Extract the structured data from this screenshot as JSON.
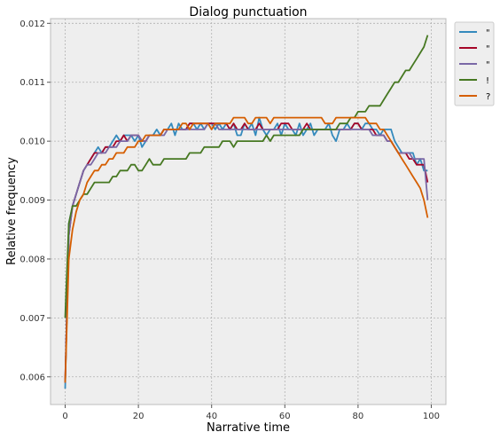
{
  "chart_data": {
    "type": "line",
    "title": "Dialog punctuation",
    "xlabel": "Narrative time",
    "ylabel": "Relative frequency",
    "xlim": [
      -4,
      104
    ],
    "ylim": [
      0.00553,
      0.01208
    ],
    "x_ticks": [
      0,
      20,
      40,
      60,
      80,
      100
    ],
    "y_ticks": [
      0.006,
      0.007,
      0.008,
      0.009,
      0.01,
      0.011,
      0.012
    ],
    "x_tick_labels": [
      "0",
      "20",
      "40",
      "60",
      "80",
      "100"
    ],
    "y_tick_labels": [
      "0.006",
      "0.007",
      "0.008",
      "0.009",
      "0.010",
      "0.011",
      "0.012"
    ],
    "grid": true,
    "legend_position": "outside-top-right",
    "series": [
      {
        "name": "\"",
        "color": "#348abd",
        "x": [
          0,
          1,
          2,
          3,
          4,
          5,
          6,
          7,
          8,
          9,
          10,
          11,
          12,
          13,
          14,
          15,
          16,
          17,
          18,
          19,
          20,
          21,
          22,
          23,
          24,
          25,
          26,
          27,
          28,
          29,
          30,
          31,
          32,
          33,
          34,
          35,
          36,
          37,
          38,
          39,
          40,
          41,
          42,
          43,
          44,
          45,
          46,
          47,
          48,
          49,
          50,
          51,
          52,
          53,
          54,
          55,
          56,
          57,
          58,
          59,
          60,
          61,
          62,
          63,
          64,
          65,
          66,
          67,
          68,
          69,
          70,
          71,
          72,
          73,
          74,
          75,
          76,
          77,
          78,
          79,
          80,
          81,
          82,
          83,
          84,
          85,
          86,
          87,
          88,
          89,
          90,
          91,
          92,
          93,
          94,
          95,
          96,
          97,
          98,
          99
        ],
        "y": [
          0.0058,
          0.0086,
          0.0089,
          0.0091,
          0.0093,
          0.0095,
          0.0096,
          0.0097,
          0.0098,
          0.0099,
          0.0098,
          0.0099,
          0.0099,
          0.01,
          0.0101,
          0.01,
          0.0101,
          0.0101,
          0.0101,
          0.01,
          0.0101,
          0.0099,
          0.01,
          0.0101,
          0.0101,
          0.0102,
          0.0101,
          0.0102,
          0.0102,
          0.0103,
          0.0101,
          0.0103,
          0.0102,
          0.0102,
          0.0103,
          0.0103,
          0.0102,
          0.0103,
          0.0102,
          0.0103,
          0.0103,
          0.0102,
          0.0103,
          0.0102,
          0.0103,
          0.0102,
          0.0103,
          0.0101,
          0.0101,
          0.0103,
          0.0102,
          0.0103,
          0.0101,
          0.0104,
          0.0102,
          0.0101,
          0.0102,
          0.0102,
          0.0103,
          0.0101,
          0.0103,
          0.0102,
          0.0102,
          0.0101,
          0.0103,
          0.0101,
          0.0102,
          0.0103,
          0.0101,
          0.0102,
          0.0102,
          0.0102,
          0.0103,
          0.0101,
          0.01,
          0.0102,
          0.0102,
          0.0103,
          0.0102,
          0.0103,
          0.0103,
          0.0102,
          0.0103,
          0.0103,
          0.0102,
          0.0102,
          0.0101,
          0.0102,
          0.0102,
          0.0102,
          0.01,
          0.0099,
          0.0098,
          0.0098,
          0.0098,
          0.0098,
          0.0096,
          0.0097,
          0.0095,
          0.0095
        ]
      },
      {
        "name": "\"",
        "color": "#a60628",
        "x": [
          0,
          1,
          2,
          3,
          4,
          5,
          6,
          7,
          8,
          9,
          10,
          11,
          12,
          13,
          14,
          15,
          16,
          17,
          18,
          19,
          20,
          21,
          22,
          23,
          24,
          25,
          26,
          27,
          28,
          29,
          30,
          31,
          32,
          33,
          34,
          35,
          36,
          37,
          38,
          39,
          40,
          41,
          42,
          43,
          44,
          45,
          46,
          47,
          48,
          49,
          50,
          51,
          52,
          53,
          54,
          55,
          56,
          57,
          58,
          59,
          60,
          61,
          62,
          63,
          64,
          65,
          66,
          67,
          68,
          69,
          70,
          71,
          72,
          73,
          74,
          75,
          76,
          77,
          78,
          79,
          80,
          81,
          82,
          83,
          84,
          85,
          86,
          87,
          88,
          89,
          90,
          91,
          92,
          93,
          94,
          95,
          96,
          97,
          98,
          99
        ],
        "y": [
          0.0059,
          0.0084,
          0.0089,
          0.0091,
          0.0093,
          0.0095,
          0.0096,
          0.0097,
          0.0098,
          0.0098,
          0.0098,
          0.0099,
          0.0099,
          0.0099,
          0.01,
          0.01,
          0.0101,
          0.01,
          0.0101,
          0.0101,
          0.0101,
          0.01,
          0.01,
          0.0101,
          0.0101,
          0.0101,
          0.0101,
          0.0102,
          0.0102,
          0.0102,
          0.0102,
          0.0102,
          0.0102,
          0.0102,
          0.0103,
          0.0103,
          0.0103,
          0.0103,
          0.0103,
          0.0103,
          0.0103,
          0.0103,
          0.0103,
          0.0103,
          0.0103,
          0.0102,
          0.0103,
          0.0102,
          0.0102,
          0.0103,
          0.0102,
          0.0102,
          0.0102,
          0.0103,
          0.0102,
          0.0102,
          0.0102,
          0.0102,
          0.0102,
          0.0103,
          0.0103,
          0.0103,
          0.0102,
          0.0102,
          0.0102,
          0.0102,
          0.0103,
          0.0102,
          0.0102,
          0.0102,
          0.0102,
          0.0102,
          0.0102,
          0.0102,
          0.0102,
          0.0102,
          0.0102,
          0.0102,
          0.0102,
          0.0103,
          0.0103,
          0.0102,
          0.0102,
          0.0102,
          0.0102,
          0.0101,
          0.0101,
          0.0101,
          0.01,
          0.01,
          0.0099,
          0.0098,
          0.0098,
          0.0098,
          0.0097,
          0.0097,
          0.0096,
          0.0096,
          0.0096,
          0.0093
        ]
      },
      {
        "name": "\"",
        "color": "#7a68a6",
        "x": [
          0,
          1,
          2,
          3,
          4,
          5,
          6,
          7,
          8,
          9,
          10,
          11,
          12,
          13,
          14,
          15,
          16,
          17,
          18,
          19,
          20,
          21,
          22,
          23,
          24,
          25,
          26,
          27,
          28,
          29,
          30,
          31,
          32,
          33,
          34,
          35,
          36,
          37,
          38,
          39,
          40,
          41,
          42,
          43,
          44,
          45,
          46,
          47,
          48,
          49,
          50,
          51,
          52,
          53,
          54,
          55,
          56,
          57,
          58,
          59,
          60,
          61,
          62,
          63,
          64,
          65,
          66,
          67,
          68,
          69,
          70,
          71,
          72,
          73,
          74,
          75,
          76,
          77,
          78,
          79,
          80,
          81,
          82,
          83,
          84,
          85,
          86,
          87,
          88,
          89,
          90,
          91,
          92,
          93,
          94,
          95,
          96,
          97,
          98,
          99
        ],
        "y": [
          0.0059,
          0.0084,
          0.0089,
          0.0091,
          0.0093,
          0.0095,
          0.0096,
          0.0096,
          0.0097,
          0.0098,
          0.0098,
          0.0098,
          0.0099,
          0.0099,
          0.0099,
          0.01,
          0.01,
          0.01,
          0.0101,
          0.0101,
          0.0101,
          0.01,
          0.01,
          0.0101,
          0.0101,
          0.0101,
          0.0101,
          0.0101,
          0.0102,
          0.0102,
          0.0102,
          0.0102,
          0.0102,
          0.0102,
          0.0102,
          0.0102,
          0.0102,
          0.0102,
          0.0102,
          0.0103,
          0.0102,
          0.0103,
          0.0102,
          0.0102,
          0.0102,
          0.0102,
          0.0102,
          0.0102,
          0.0102,
          0.0102,
          0.0102,
          0.0102,
          0.0102,
          0.0102,
          0.0102,
          0.0102,
          0.0102,
          0.0102,
          0.0102,
          0.0102,
          0.0102,
          0.0102,
          0.0102,
          0.0102,
          0.0102,
          0.0102,
          0.0102,
          0.0102,
          0.0102,
          0.0102,
          0.0102,
          0.0102,
          0.0102,
          0.0102,
          0.0102,
          0.0102,
          0.0102,
          0.0102,
          0.0102,
          0.0102,
          0.0102,
          0.0102,
          0.0102,
          0.0102,
          0.0101,
          0.0101,
          0.0101,
          0.0101,
          0.01,
          0.01,
          0.0099,
          0.0098,
          0.0098,
          0.0098,
          0.0098,
          0.0097,
          0.0097,
          0.0097,
          0.0097,
          0.009
        ]
      },
      {
        "name": "!",
        "color": "#467821",
        "x": [
          0,
          1,
          2,
          3,
          4,
          5,
          6,
          7,
          8,
          9,
          10,
          11,
          12,
          13,
          14,
          15,
          16,
          17,
          18,
          19,
          20,
          21,
          22,
          23,
          24,
          25,
          26,
          27,
          28,
          29,
          30,
          31,
          32,
          33,
          34,
          35,
          36,
          37,
          38,
          39,
          40,
          41,
          42,
          43,
          44,
          45,
          46,
          47,
          48,
          49,
          50,
          51,
          52,
          53,
          54,
          55,
          56,
          57,
          58,
          59,
          60,
          61,
          62,
          63,
          64,
          65,
          66,
          67,
          68,
          69,
          70,
          71,
          72,
          73,
          74,
          75,
          76,
          77,
          78,
          79,
          80,
          81,
          82,
          83,
          84,
          85,
          86,
          87,
          88,
          89,
          90,
          91,
          92,
          93,
          94,
          95,
          96,
          97,
          98,
          99
        ],
        "y": [
          0.007,
          0.0086,
          0.0089,
          0.0089,
          0.009,
          0.0091,
          0.0091,
          0.0092,
          0.0093,
          0.0093,
          0.0093,
          0.0093,
          0.0093,
          0.0094,
          0.0094,
          0.0095,
          0.0095,
          0.0095,
          0.0096,
          0.0096,
          0.0095,
          0.0095,
          0.0096,
          0.0097,
          0.0096,
          0.0096,
          0.0096,
          0.0097,
          0.0097,
          0.0097,
          0.0097,
          0.0097,
          0.0097,
          0.0097,
          0.0098,
          0.0098,
          0.0098,
          0.0098,
          0.0099,
          0.0099,
          0.0099,
          0.0099,
          0.0099,
          0.01,
          0.01,
          0.01,
          0.0099,
          0.01,
          0.01,
          0.01,
          0.01,
          0.01,
          0.01,
          0.01,
          0.01,
          0.0101,
          0.01,
          0.0101,
          0.0101,
          0.0101,
          0.0101,
          0.0101,
          0.0101,
          0.0101,
          0.0101,
          0.0102,
          0.0102,
          0.0102,
          0.0102,
          0.0102,
          0.0102,
          0.0102,
          0.0102,
          0.0102,
          0.0102,
          0.0103,
          0.0103,
          0.0103,
          0.0104,
          0.0104,
          0.0105,
          0.0105,
          0.0105,
          0.0106,
          0.0106,
          0.0106,
          0.0106,
          0.0107,
          0.0108,
          0.0109,
          0.011,
          0.011,
          0.0111,
          0.0112,
          0.0112,
          0.0113,
          0.0114,
          0.0115,
          0.0116,
          0.0118
        ]
      },
      {
        "name": "?",
        "color": "#d55e00",
        "x": [
          0,
          1,
          2,
          3,
          4,
          5,
          6,
          7,
          8,
          9,
          10,
          11,
          12,
          13,
          14,
          15,
          16,
          17,
          18,
          19,
          20,
          21,
          22,
          23,
          24,
          25,
          26,
          27,
          28,
          29,
          30,
          31,
          32,
          33,
          34,
          35,
          36,
          37,
          38,
          39,
          40,
          41,
          42,
          43,
          44,
          45,
          46,
          47,
          48,
          49,
          50,
          51,
          52,
          53,
          54,
          55,
          56,
          57,
          58,
          59,
          60,
          61,
          62,
          63,
          64,
          65,
          66,
          67,
          68,
          69,
          70,
          71,
          72,
          73,
          74,
          75,
          76,
          77,
          78,
          79,
          80,
          81,
          82,
          83,
          84,
          85,
          86,
          87,
          88,
          89,
          90,
          91,
          92,
          93,
          94,
          95,
          96,
          97,
          98,
          99
        ],
        "y": [
          0.0059,
          0.008,
          0.0085,
          0.0088,
          0.009,
          0.0091,
          0.0093,
          0.0094,
          0.0095,
          0.0095,
          0.0096,
          0.0096,
          0.0097,
          0.0097,
          0.0098,
          0.0098,
          0.0098,
          0.0099,
          0.0099,
          0.0099,
          0.01,
          0.01,
          0.0101,
          0.0101,
          0.0101,
          0.0101,
          0.0101,
          0.0102,
          0.0102,
          0.0102,
          0.0102,
          0.0102,
          0.0103,
          0.0103,
          0.0102,
          0.0103,
          0.0103,
          0.0103,
          0.0103,
          0.0103,
          0.0102,
          0.0103,
          0.0103,
          0.0103,
          0.0103,
          0.0103,
          0.0104,
          0.0104,
          0.0104,
          0.0104,
          0.0103,
          0.0103,
          0.0104,
          0.0104,
          0.0104,
          0.0104,
          0.0103,
          0.0104,
          0.0104,
          0.0104,
          0.0104,
          0.0104,
          0.0104,
          0.0104,
          0.0104,
          0.0104,
          0.0104,
          0.0104,
          0.0104,
          0.0104,
          0.0104,
          0.0103,
          0.0103,
          0.0103,
          0.0104,
          0.0104,
          0.0104,
          0.0104,
          0.0104,
          0.0104,
          0.0104,
          0.0104,
          0.0104,
          0.0103,
          0.0103,
          0.0103,
          0.0102,
          0.0102,
          0.0101,
          0.01,
          0.0099,
          0.0098,
          0.0097,
          0.0096,
          0.0095,
          0.0094,
          0.0093,
          0.0092,
          0.009,
          0.0087
        ]
      }
    ]
  }
}
